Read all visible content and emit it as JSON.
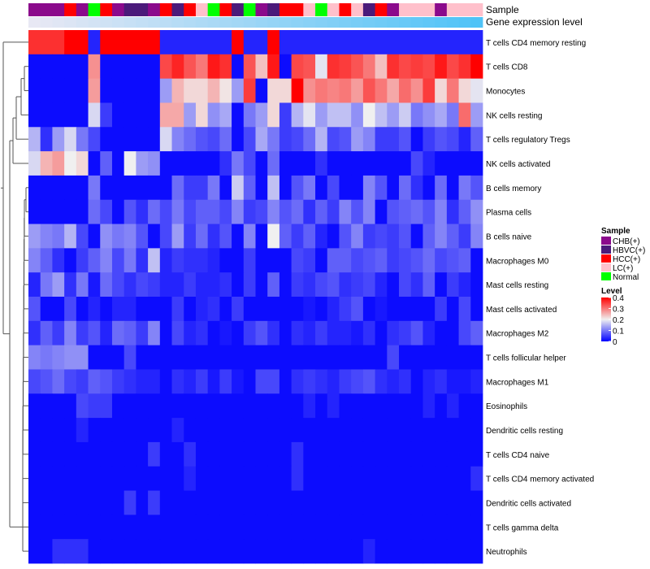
{
  "chart_data": {
    "type": "heatmap",
    "annotation_labels": {
      "sample": "Sample",
      "expression": "Gene expression level"
    },
    "rows": [
      "T cells CD4 memory resting",
      "T cells CD8",
      "Monocytes",
      "NK cells resting",
      "T cells regulatory  Tregs",
      "NK cells activated",
      "B cells memory",
      "Plasma cells",
      "B cells naive",
      "Macrophages M0",
      "Mast cells resting",
      "Mast cells activated",
      "Macrophages M2",
      "T cells follicular helper",
      "Macrophages M1",
      "Eosinophils",
      "Dendritic cells resting",
      "T cells CD4 naive",
      "T cells CD4 memory activated",
      "Dendritic cells activated",
      "T cells gamma delta",
      "Neutrophils"
    ],
    "sample_groups": [
      "CHB(+)",
      "CHB(+)",
      "CHB(+)",
      "HCC(+)",
      "CHB(+)",
      "Normal",
      "HCC(+)",
      "CHB(+)",
      "HBVC(+)",
      "HBVC(+)",
      "CHB(+)",
      "HCC(+)",
      "HBVC(+)",
      "HCC(+)",
      "LC(+)",
      "Normal",
      "HCC(+)",
      "HBVC(+)",
      "Normal",
      "CHB(+)",
      "HBVC(+)",
      "HCC(+)",
      "HCC(+)",
      "LC(+)",
      "Normal",
      "LC(+)",
      "HCC(+)",
      "LC(+)",
      "HBVC(+)",
      "HCC(+)",
      "CHB(+)",
      "LC(+)",
      "LC(+)",
      "LC(+)",
      "CHB(+)",
      "LC(+)",
      "LC(+)",
      "LC(+)"
    ],
    "values": [
      [
        0.36,
        0.36,
        0.36,
        0.4,
        0.4,
        0.03,
        0.4,
        0.4,
        0.4,
        0.4,
        0.4,
        0.03,
        0.03,
        0.03,
        0.03,
        0.03,
        0.03,
        0.4,
        0.03,
        0.03,
        0.4,
        0.03,
        0.03,
        0.03,
        0.03,
        0.03,
        0.03,
        0.03,
        0.03,
        0.03,
        0.03,
        0.03,
        0.03,
        0.03,
        0.03,
        0.03,
        0.03,
        0.03
      ],
      [
        0.01,
        0.01,
        0.01,
        0.01,
        0.01,
        0.28,
        0.01,
        0.01,
        0.01,
        0.01,
        0.01,
        0.34,
        0.37,
        0.33,
        0.3,
        0.38,
        0.36,
        0.01,
        0.33,
        0.24,
        0.38,
        0.01,
        0.34,
        0.33,
        0.19,
        0.36,
        0.35,
        0.33,
        0.3,
        0.24,
        0.36,
        0.34,
        0.35,
        0.34,
        0.38,
        0.34,
        0.36,
        0.4
      ],
      [
        0.01,
        0.01,
        0.01,
        0.01,
        0.01,
        0.27,
        0.01,
        0.01,
        0.01,
        0.01,
        0.01,
        0.13,
        0.25,
        0.22,
        0.22,
        0.25,
        0.21,
        0.13,
        0.35,
        0.01,
        0.22,
        0.22,
        0.4,
        0.28,
        0.3,
        0.29,
        0.3,
        0.27,
        0.33,
        0.3,
        0.26,
        0.31,
        0.28,
        0.35,
        0.22,
        0.3,
        0.22,
        0.19
      ],
      [
        0.01,
        0.01,
        0.01,
        0.01,
        0.01,
        0.18,
        0.05,
        0.01,
        0.01,
        0.01,
        0.01,
        0.26,
        0.26,
        0.13,
        0.22,
        0.12,
        0.14,
        0.01,
        0.1,
        0.13,
        0.22,
        0.05,
        0.15,
        0.19,
        0.13,
        0.16,
        0.16,
        0.12,
        0.2,
        0.16,
        0.13,
        0.17,
        0.1,
        0.12,
        0.14,
        0.1,
        0.31,
        0.13
      ],
      [
        0.15,
        0.04,
        0.13,
        0.18,
        0.1,
        0.06,
        0.01,
        0.01,
        0.01,
        0.01,
        0.01,
        0.18,
        0.11,
        0.09,
        0.07,
        0.06,
        0.09,
        0.01,
        0.06,
        0.14,
        0.1,
        0.05,
        0.06,
        0.09,
        0.15,
        0.06,
        0.07,
        0.13,
        0.11,
        0.05,
        0.05,
        0.07,
        0.01,
        0.05,
        0.07,
        0.06,
        0.03,
        0.08
      ],
      [
        0.18,
        0.25,
        0.27,
        0.2,
        0.22,
        0.01,
        0.08,
        0.01,
        0.2,
        0.13,
        0.12,
        0.01,
        0.01,
        0.01,
        0.01,
        0.01,
        0.04,
        0.1,
        0.06,
        0.01,
        0.09,
        0.01,
        0.01,
        0.01,
        0.04,
        0.01,
        0.01,
        0.01,
        0.01,
        0.01,
        0.01,
        0.01,
        0.06,
        0.03,
        0.01,
        0.01,
        0.01,
        0.01
      ],
      [
        0.01,
        0.01,
        0.01,
        0.01,
        0.01,
        0.1,
        0.01,
        0.01,
        0.01,
        0.01,
        0.01,
        0.01,
        0.09,
        0.05,
        0.05,
        0.1,
        0.01,
        0.17,
        0.08,
        0.01,
        0.16,
        0.01,
        0.07,
        0.1,
        0.01,
        0.06,
        0.01,
        0.01,
        0.11,
        0.07,
        0.01,
        0.09,
        0.04,
        0.01,
        0.09,
        0.01,
        0.1,
        0.07
      ],
      [
        0.01,
        0.01,
        0.01,
        0.01,
        0.01,
        0.09,
        0.06,
        0.01,
        0.07,
        0.04,
        0.09,
        0.06,
        0.1,
        0.06,
        0.08,
        0.08,
        0.06,
        0.11,
        0.05,
        0.06,
        0.11,
        0.07,
        0.09,
        0.04,
        0.08,
        0.05,
        0.11,
        0.07,
        0.11,
        0.01,
        0.07,
        0.08,
        0.09,
        0.07,
        0.11,
        0.04,
        0.08,
        0.12
      ],
      [
        0.13,
        0.11,
        0.1,
        0.15,
        0.06,
        0.01,
        0.12,
        0.1,
        0.11,
        0.07,
        0.01,
        0.06,
        0.13,
        0.05,
        0.09,
        0.04,
        0.07,
        0.01,
        0.11,
        0.01,
        0.2,
        0.08,
        0.05,
        0.08,
        0.03,
        0.01,
        0.07,
        0.11,
        0.05,
        0.06,
        0.05,
        0.07,
        0.01,
        0.08,
        0.11,
        0.08,
        0.05,
        0.11
      ],
      [
        0.11,
        0.08,
        0.04,
        0.01,
        0.05,
        0.08,
        0.11,
        0.06,
        0.1,
        0.04,
        0.16,
        0.03,
        0.05,
        0.04,
        0.04,
        0.03,
        0.01,
        0.01,
        0.05,
        0.01,
        0.01,
        0.01,
        0.06,
        0.05,
        0.01,
        0.08,
        0.08,
        0.06,
        0.07,
        0.08,
        0.05,
        0.06,
        0.07,
        0.09,
        0.06,
        0.07,
        0.08,
        0.01
      ],
      [
        0.03,
        0.1,
        0.13,
        0.04,
        0.1,
        0.02,
        0.09,
        0.06,
        0.04,
        0.06,
        0.05,
        0.03,
        0.03,
        0.05,
        0.03,
        0.03,
        0.04,
        0.01,
        0.05,
        0.01,
        0.08,
        0.01,
        0.05,
        0.04,
        0.06,
        0.07,
        0.04,
        0.05,
        0.06,
        0.03,
        0.01,
        0.06,
        0.04,
        0.08,
        0.01,
        0.05,
        0.03,
        0.01
      ],
      [
        0.07,
        0.01,
        0.01,
        0.06,
        0.01,
        0.03,
        0.01,
        0.03,
        0.03,
        0.01,
        0.01,
        0.01,
        0.05,
        0.01,
        0.03,
        0.04,
        0.01,
        0.05,
        0.01,
        0.01,
        0.01,
        0.01,
        0.01,
        0.02,
        0.01,
        0.03,
        0.05,
        0.07,
        0.01,
        0.02,
        0.01,
        0.01,
        0.01,
        0.01,
        0.05,
        0.01,
        0.06,
        0.01
      ],
      [
        0.04,
        0.08,
        0.05,
        0.11,
        0.05,
        0.07,
        0.03,
        0.09,
        0.08,
        0.05,
        0.11,
        0.01,
        0.06,
        0.03,
        0.04,
        0.01,
        0.02,
        0.01,
        0.05,
        0.07,
        0.04,
        0.01,
        0.04,
        0.03,
        0.05,
        0.03,
        0.03,
        0.02,
        0.04,
        0.01,
        0.04,
        0.05,
        0.07,
        0.03,
        0.01,
        0.01,
        0.06,
        0.08
      ],
      [
        0.11,
        0.1,
        0.11,
        0.12,
        0.12,
        0.01,
        0.01,
        0.01,
        0.06,
        0.01,
        0.01,
        0.01,
        0.01,
        0.01,
        0.01,
        0.01,
        0.01,
        0.01,
        0.01,
        0.01,
        0.01,
        0.01,
        0.01,
        0.01,
        0.01,
        0.01,
        0.01,
        0.01,
        0.01,
        0.01,
        0.06,
        0.01,
        0.01,
        0.01,
        0.01,
        0.01,
        0.01,
        0.01
      ],
      [
        0.06,
        0.07,
        0.09,
        0.06,
        0.05,
        0.08,
        0.07,
        0.05,
        0.04,
        0.03,
        0.03,
        0.01,
        0.04,
        0.03,
        0.05,
        0.02,
        0.05,
        0.02,
        0.01,
        0.06,
        0.06,
        0.01,
        0.04,
        0.05,
        0.04,
        0.03,
        0.05,
        0.06,
        0.07,
        0.04,
        0.03,
        0.04,
        0.01,
        0.03,
        0.04,
        0.02,
        0.02,
        0.03
      ],
      [
        0.01,
        0.01,
        0.01,
        0.01,
        0.06,
        0.05,
        0.05,
        0.01,
        0.01,
        0.01,
        0.01,
        0.01,
        0.01,
        0.01,
        0.01,
        0.01,
        0.01,
        0.01,
        0.01,
        0.01,
        0.01,
        0.01,
        0.01,
        0.03,
        0.01,
        0.03,
        0.01,
        0.01,
        0.01,
        0.01,
        0.01,
        0.01,
        0.01,
        0.03,
        0.01,
        0.03,
        0.01,
        0.01
      ],
      [
        0.01,
        0.01,
        0.01,
        0.01,
        0.03,
        0.01,
        0.01,
        0.01,
        0.01,
        0.01,
        0.01,
        0.01,
        0.03,
        0.01,
        0.01,
        0.01,
        0.01,
        0.01,
        0.01,
        0.01,
        0.01,
        0.01,
        0.01,
        0.01,
        0.01,
        0.01,
        0.01,
        0.01,
        0.01,
        0.01,
        0.01,
        0.01,
        0.01,
        0.01,
        0.01,
        0.01,
        0.01,
        0.01
      ],
      [
        0.01,
        0.01,
        0.01,
        0.01,
        0.01,
        0.01,
        0.01,
        0.01,
        0.01,
        0.01,
        0.05,
        0.01,
        0.01,
        0.04,
        0.01,
        0.01,
        0.01,
        0.01,
        0.01,
        0.01,
        0.01,
        0.01,
        0.04,
        0.01,
        0.01,
        0.01,
        0.01,
        0.01,
        0.01,
        0.01,
        0.01,
        0.01,
        0.01,
        0.01,
        0.01,
        0.01,
        0.01,
        0.01
      ],
      [
        0.01,
        0.01,
        0.01,
        0.01,
        0.01,
        0.01,
        0.01,
        0.01,
        0.01,
        0.01,
        0.01,
        0.01,
        0.01,
        0.03,
        0.01,
        0.01,
        0.01,
        0.01,
        0.01,
        0.01,
        0.01,
        0.01,
        0.04,
        0.01,
        0.01,
        0.01,
        0.01,
        0.01,
        0.01,
        0.01,
        0.01,
        0.01,
        0.01,
        0.01,
        0.01,
        0.01,
        0.01,
        0.04
      ],
      [
        0.01,
        0.01,
        0.01,
        0.01,
        0.01,
        0.01,
        0.01,
        0.01,
        0.05,
        0.01,
        0.05,
        0.01,
        0.01,
        0.01,
        0.01,
        0.01,
        0.01,
        0.01,
        0.01,
        0.01,
        0.01,
        0.01,
        0.01,
        0.01,
        0.01,
        0.01,
        0.01,
        0.01,
        0.01,
        0.01,
        0.01,
        0.01,
        0.01,
        0.01,
        0.01,
        0.01,
        0.01,
        0.01
      ],
      [
        0.01,
        0.01,
        0.01,
        0.01,
        0.01,
        0.01,
        0.01,
        0.01,
        0.01,
        0.01,
        0.01,
        0.01,
        0.01,
        0.01,
        0.01,
        0.01,
        0.01,
        0.01,
        0.01,
        0.01,
        0.01,
        0.01,
        0.01,
        0.01,
        0.01,
        0.01,
        0.01,
        0.01,
        0.01,
        0.01,
        0.01,
        0.01,
        0.01,
        0.01,
        0.01,
        0.01,
        0.01,
        0.01
      ],
      [
        0.01,
        0.01,
        0.04,
        0.04,
        0.04,
        0.01,
        0.01,
        0.01,
        0.01,
        0.01,
        0.01,
        0.01,
        0.01,
        0.01,
        0.01,
        0.01,
        0.01,
        0.01,
        0.01,
        0.01,
        0.01,
        0.01,
        0.01,
        0.01,
        0.01,
        0.01,
        0.01,
        0.01,
        0.03,
        0.01,
        0.01,
        0.01,
        0.01,
        0.01,
        0.01,
        0.01,
        0.01,
        0.01
      ]
    ],
    "legend_sample": {
      "title": "Sample",
      "entries": [
        {
          "label": "CHB(+)",
          "color": "#8b0a8c"
        },
        {
          "label": "HBVC(+)",
          "color": "#4b1a7a"
        },
        {
          "label": "HCC(+)",
          "color": "#ff0000"
        },
        {
          "label": "LC(+)",
          "color": "#ffc0cb"
        },
        {
          "label": "Normal",
          "color": "#00ff00"
        }
      ]
    },
    "legend_level": {
      "title": "Level",
      "ticks": [
        "0.4",
        "0.3",
        "0.2",
        "0.1",
        "0"
      ],
      "tick_values": [
        0.4,
        0.3,
        0.2,
        0.1,
        0.0
      ]
    },
    "value_range": [
      0,
      0.4
    ],
    "colors": {
      "low": "#0000ff",
      "mid": "#f0f0f0",
      "high": "#ff0000",
      "expression_start": "#e8e8f4",
      "expression_end": "#4fc3f7",
      "dendrogram": "#555555"
    }
  }
}
